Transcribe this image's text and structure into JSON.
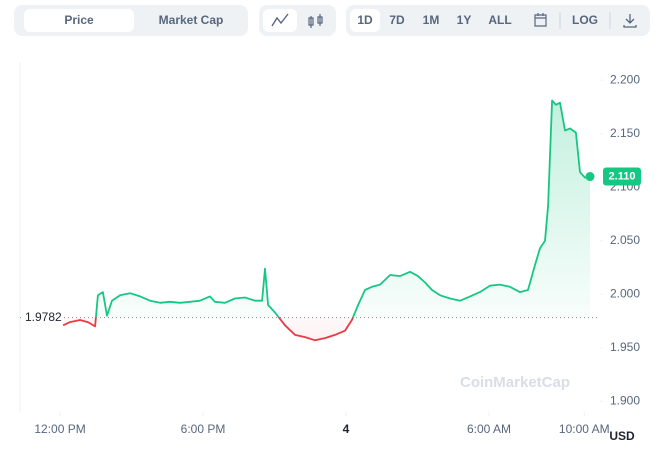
{
  "toolbar": {
    "tabs": [
      "Price",
      "Market Cap"
    ],
    "ranges": [
      "1D",
      "7D",
      "1M",
      "1Y",
      "ALL"
    ],
    "log": "LOG"
  },
  "chart_data": {
    "type": "line",
    "watermark": "CoinMarketCap",
    "currency": "USD",
    "x": [
      0.13,
      0.42,
      0.84,
      1.17,
      1.47,
      1.59,
      1.8,
      1.97,
      2.18,
      2.52,
      2.94,
      3.36,
      3.78,
      4.2,
      4.62,
      5.04,
      5.46,
      5.87,
      6.29,
      6.5,
      6.92,
      7.34,
      7.76,
      8.18,
      8.48,
      8.6,
      8.73,
      9.02,
      9.44,
      9.86,
      10.28,
      10.7,
      11.12,
      11.54,
      11.96,
      12.25,
      12.51,
      12.8,
      13.09,
      13.43,
      13.85,
      14.27,
      14.69,
      15.02,
      15.32,
      15.61,
      15.95,
      16.37,
      16.79,
      17.21,
      17.62,
      18.04,
      18.46,
      18.88,
      19.3,
      19.64,
      19.93,
      20.14,
      20.35,
      20.48,
      20.65,
      20.81,
      20.98,
      21.19,
      21.4,
      21.65,
      21.82,
      22.03,
      22.24
    ],
    "series": [
      {
        "name": "Price",
        "color": "#16c784",
        "color_below": "#ea3943",
        "values": [
          1.971,
          1.974,
          1.976,
          1.974,
          1.97,
          1.999,
          2.002,
          1.98,
          1.994,
          1.999,
          2.001,
          1.998,
          1.994,
          1.992,
          1.993,
          1.992,
          1.993,
          1.994,
          1.998,
          1.993,
          1.992,
          1.996,
          1.997,
          1.994,
          1.994,
          2.024,
          1.99,
          1.983,
          1.971,
          1.962,
          1.96,
          1.957,
          1.959,
          1.962,
          1.966,
          1.976,
          1.99,
          2.004,
          2.007,
          2.009,
          2.018,
          2.017,
          2.021,
          2.017,
          2.011,
          2.004,
          1.999,
          1.996,
          1.994,
          1.998,
          2.002,
          2.008,
          2.009,
          2.007,
          2.002,
          2.004,
          2.027,
          2.043,
          2.05,
          2.083,
          2.181,
          2.177,
          2.179,
          2.153,
          2.155,
          2.151,
          2.114,
          2.109,
          2.11
        ]
      }
    ],
    "reference": {
      "value": 1.9782,
      "label": "1.9782"
    },
    "current": {
      "value": 2.11,
      "label": "2.110"
    },
    "xlim": [
      -1.68,
      22.66
    ],
    "xticks": [
      {
        "value": 0,
        "label": "12:00 PM"
      },
      {
        "value": 6,
        "label": "6:00 PM"
      },
      {
        "value": 12,
        "label": "4"
      },
      {
        "value": 18,
        "label": "6:00 AM"
      },
      {
        "value": 22,
        "label": "10:00 AM"
      }
    ],
    "ylim": [
      1.89,
      2.217
    ],
    "yticks": [
      {
        "value": 1.9,
        "label": "1.900"
      },
      {
        "value": 1.95,
        "label": "1.950"
      },
      {
        "value": 2.0,
        "label": "2.000"
      },
      {
        "value": 2.05,
        "label": "2.050"
      },
      {
        "value": 2.1,
        "label": "2.100"
      },
      {
        "value": 2.15,
        "label": "2.150"
      },
      {
        "value": 2.2,
        "label": "2.200"
      }
    ],
    "grid": false
  }
}
